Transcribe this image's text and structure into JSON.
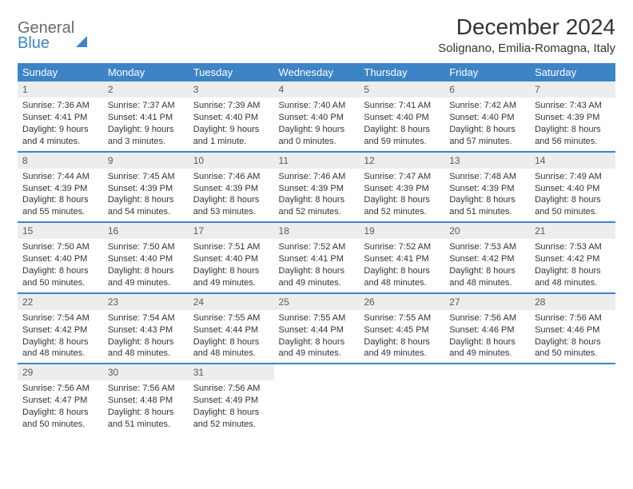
{
  "brand": {
    "part1": "General",
    "part2": "Blue"
  },
  "title": "December 2024",
  "location": "Solignano, Emilia-Romagna, Italy",
  "colors": {
    "header_bg": "#3d84c6",
    "header_fg": "#ffffff",
    "daynum_bg": "#eceded",
    "row_divider": "#3d84c6",
    "page_bg": "#ffffff",
    "text": "#333333"
  },
  "day_labels": [
    "Sunday",
    "Monday",
    "Tuesday",
    "Wednesday",
    "Thursday",
    "Friday",
    "Saturday"
  ],
  "weeks": [
    [
      {
        "n": "1",
        "sr": "Sunrise: 7:36 AM",
        "ss": "Sunset: 4:41 PM",
        "d1": "Daylight: 9 hours",
        "d2": "and 4 minutes."
      },
      {
        "n": "2",
        "sr": "Sunrise: 7:37 AM",
        "ss": "Sunset: 4:41 PM",
        "d1": "Daylight: 9 hours",
        "d2": "and 3 minutes."
      },
      {
        "n": "3",
        "sr": "Sunrise: 7:39 AM",
        "ss": "Sunset: 4:40 PM",
        "d1": "Daylight: 9 hours",
        "d2": "and 1 minute."
      },
      {
        "n": "4",
        "sr": "Sunrise: 7:40 AM",
        "ss": "Sunset: 4:40 PM",
        "d1": "Daylight: 9 hours",
        "d2": "and 0 minutes."
      },
      {
        "n": "5",
        "sr": "Sunrise: 7:41 AM",
        "ss": "Sunset: 4:40 PM",
        "d1": "Daylight: 8 hours",
        "d2": "and 59 minutes."
      },
      {
        "n": "6",
        "sr": "Sunrise: 7:42 AM",
        "ss": "Sunset: 4:40 PM",
        "d1": "Daylight: 8 hours",
        "d2": "and 57 minutes."
      },
      {
        "n": "7",
        "sr": "Sunrise: 7:43 AM",
        "ss": "Sunset: 4:39 PM",
        "d1": "Daylight: 8 hours",
        "d2": "and 56 minutes."
      }
    ],
    [
      {
        "n": "8",
        "sr": "Sunrise: 7:44 AM",
        "ss": "Sunset: 4:39 PM",
        "d1": "Daylight: 8 hours",
        "d2": "and 55 minutes."
      },
      {
        "n": "9",
        "sr": "Sunrise: 7:45 AM",
        "ss": "Sunset: 4:39 PM",
        "d1": "Daylight: 8 hours",
        "d2": "and 54 minutes."
      },
      {
        "n": "10",
        "sr": "Sunrise: 7:46 AM",
        "ss": "Sunset: 4:39 PM",
        "d1": "Daylight: 8 hours",
        "d2": "and 53 minutes."
      },
      {
        "n": "11",
        "sr": "Sunrise: 7:46 AM",
        "ss": "Sunset: 4:39 PM",
        "d1": "Daylight: 8 hours",
        "d2": "and 52 minutes."
      },
      {
        "n": "12",
        "sr": "Sunrise: 7:47 AM",
        "ss": "Sunset: 4:39 PM",
        "d1": "Daylight: 8 hours",
        "d2": "and 52 minutes."
      },
      {
        "n": "13",
        "sr": "Sunrise: 7:48 AM",
        "ss": "Sunset: 4:39 PM",
        "d1": "Daylight: 8 hours",
        "d2": "and 51 minutes."
      },
      {
        "n": "14",
        "sr": "Sunrise: 7:49 AM",
        "ss": "Sunset: 4:40 PM",
        "d1": "Daylight: 8 hours",
        "d2": "and 50 minutes."
      }
    ],
    [
      {
        "n": "15",
        "sr": "Sunrise: 7:50 AM",
        "ss": "Sunset: 4:40 PM",
        "d1": "Daylight: 8 hours",
        "d2": "and 50 minutes."
      },
      {
        "n": "16",
        "sr": "Sunrise: 7:50 AM",
        "ss": "Sunset: 4:40 PM",
        "d1": "Daylight: 8 hours",
        "d2": "and 49 minutes."
      },
      {
        "n": "17",
        "sr": "Sunrise: 7:51 AM",
        "ss": "Sunset: 4:40 PM",
        "d1": "Daylight: 8 hours",
        "d2": "and 49 minutes."
      },
      {
        "n": "18",
        "sr": "Sunrise: 7:52 AM",
        "ss": "Sunset: 4:41 PM",
        "d1": "Daylight: 8 hours",
        "d2": "and 49 minutes."
      },
      {
        "n": "19",
        "sr": "Sunrise: 7:52 AM",
        "ss": "Sunset: 4:41 PM",
        "d1": "Daylight: 8 hours",
        "d2": "and 48 minutes."
      },
      {
        "n": "20",
        "sr": "Sunrise: 7:53 AM",
        "ss": "Sunset: 4:42 PM",
        "d1": "Daylight: 8 hours",
        "d2": "and 48 minutes."
      },
      {
        "n": "21",
        "sr": "Sunrise: 7:53 AM",
        "ss": "Sunset: 4:42 PM",
        "d1": "Daylight: 8 hours",
        "d2": "and 48 minutes."
      }
    ],
    [
      {
        "n": "22",
        "sr": "Sunrise: 7:54 AM",
        "ss": "Sunset: 4:42 PM",
        "d1": "Daylight: 8 hours",
        "d2": "and 48 minutes."
      },
      {
        "n": "23",
        "sr": "Sunrise: 7:54 AM",
        "ss": "Sunset: 4:43 PM",
        "d1": "Daylight: 8 hours",
        "d2": "and 48 minutes."
      },
      {
        "n": "24",
        "sr": "Sunrise: 7:55 AM",
        "ss": "Sunset: 4:44 PM",
        "d1": "Daylight: 8 hours",
        "d2": "and 48 minutes."
      },
      {
        "n": "25",
        "sr": "Sunrise: 7:55 AM",
        "ss": "Sunset: 4:44 PM",
        "d1": "Daylight: 8 hours",
        "d2": "and 49 minutes."
      },
      {
        "n": "26",
        "sr": "Sunrise: 7:55 AM",
        "ss": "Sunset: 4:45 PM",
        "d1": "Daylight: 8 hours",
        "d2": "and 49 minutes."
      },
      {
        "n": "27",
        "sr": "Sunrise: 7:56 AM",
        "ss": "Sunset: 4:46 PM",
        "d1": "Daylight: 8 hours",
        "d2": "and 49 minutes."
      },
      {
        "n": "28",
        "sr": "Sunrise: 7:56 AM",
        "ss": "Sunset: 4:46 PM",
        "d1": "Daylight: 8 hours",
        "d2": "and 50 minutes."
      }
    ],
    [
      {
        "n": "29",
        "sr": "Sunrise: 7:56 AM",
        "ss": "Sunset: 4:47 PM",
        "d1": "Daylight: 8 hours",
        "d2": "and 50 minutes."
      },
      {
        "n": "30",
        "sr": "Sunrise: 7:56 AM",
        "ss": "Sunset: 4:48 PM",
        "d1": "Daylight: 8 hours",
        "d2": "and 51 minutes."
      },
      {
        "n": "31",
        "sr": "Sunrise: 7:56 AM",
        "ss": "Sunset: 4:49 PM",
        "d1": "Daylight: 8 hours",
        "d2": "and 52 minutes."
      },
      {
        "empty": true
      },
      {
        "empty": true
      },
      {
        "empty": true
      },
      {
        "empty": true
      }
    ]
  ]
}
